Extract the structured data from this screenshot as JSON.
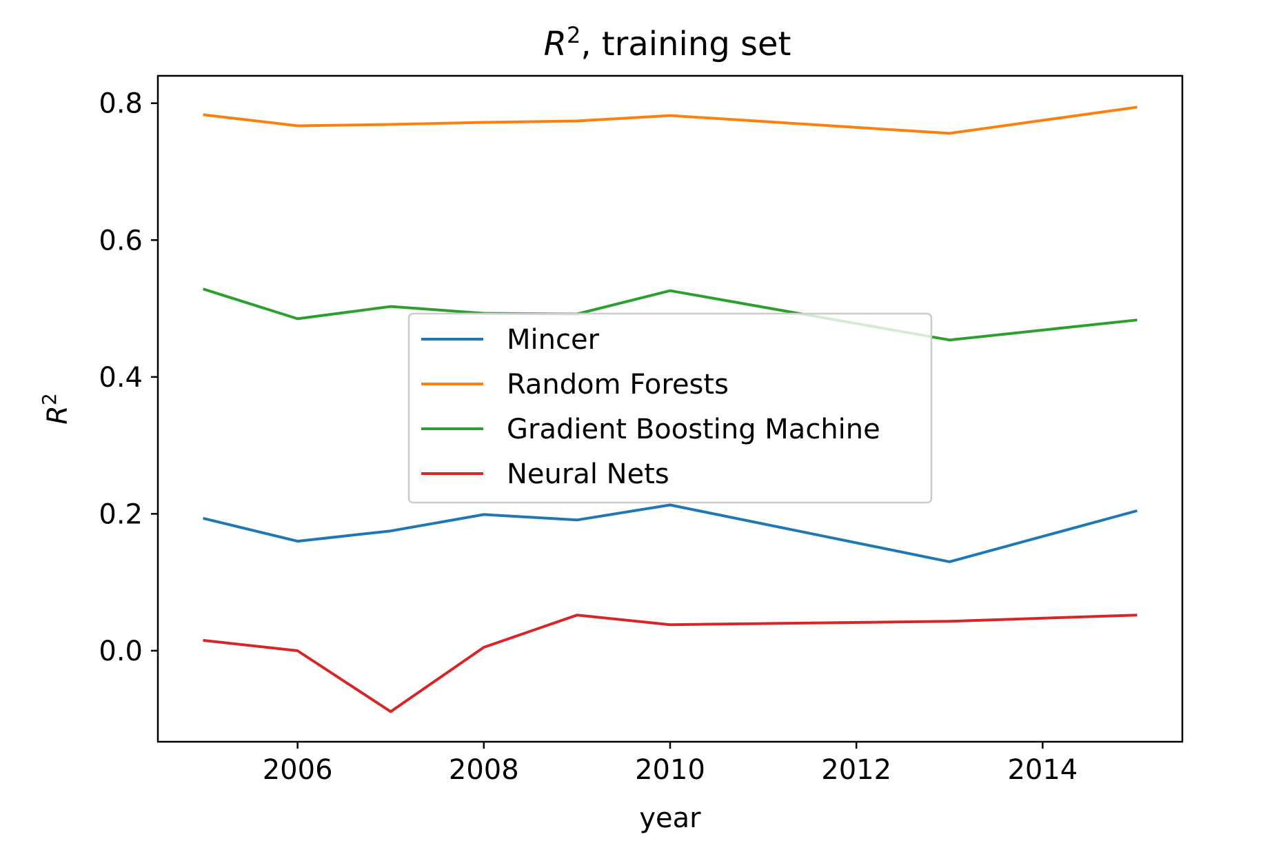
{
  "chart_data": {
    "type": "line",
    "title": "R², training set",
    "title_italic": "R",
    "title_sup": "2",
    "title_rest": ", training set",
    "xlabel": "year",
    "ylabel": "R²",
    "ylabel_italic": "R",
    "ylabel_sup": "2",
    "xlim": [
      2004.5,
      2015.5
    ],
    "ylim": [
      -0.133,
      0.84
    ],
    "xticks": [
      2006,
      2008,
      2010,
      2012,
      2014
    ],
    "xtick_labels": [
      "2006",
      "2008",
      "2010",
      "2012",
      "2014"
    ],
    "yticks": [
      0.0,
      0.2,
      0.4,
      0.6,
      0.8
    ],
    "ytick_labels": [
      "0.0",
      "0.2",
      "0.4",
      "0.6",
      "0.8"
    ],
    "grid": false,
    "legend_position": "center",
    "x": [
      2005,
      2006,
      2007,
      2008,
      2009,
      2010,
      2013,
      2015
    ],
    "series": [
      {
        "name": "Mincer",
        "color": "#1f77b4",
        "values": [
          0.193,
          0.16,
          0.175,
          0.199,
          0.191,
          0.213,
          0.13,
          0.204
        ]
      },
      {
        "name": "Random Forests",
        "color": "#ff7f0e",
        "values": [
          0.783,
          0.767,
          0.769,
          0.772,
          0.774,
          0.782,
          0.756,
          0.794
        ]
      },
      {
        "name": "Gradient Boosting Machine",
        "color": "#2ca02c",
        "values": [
          0.528,
          0.485,
          0.503,
          0.493,
          0.492,
          0.526,
          0.454,
          0.483
        ]
      },
      {
        "name": "Neural Nets",
        "color": "#d62728",
        "values": [
          0.015,
          0.0,
          -0.089,
          0.005,
          0.052,
          0.038,
          0.043,
          0.052
        ]
      }
    ]
  }
}
